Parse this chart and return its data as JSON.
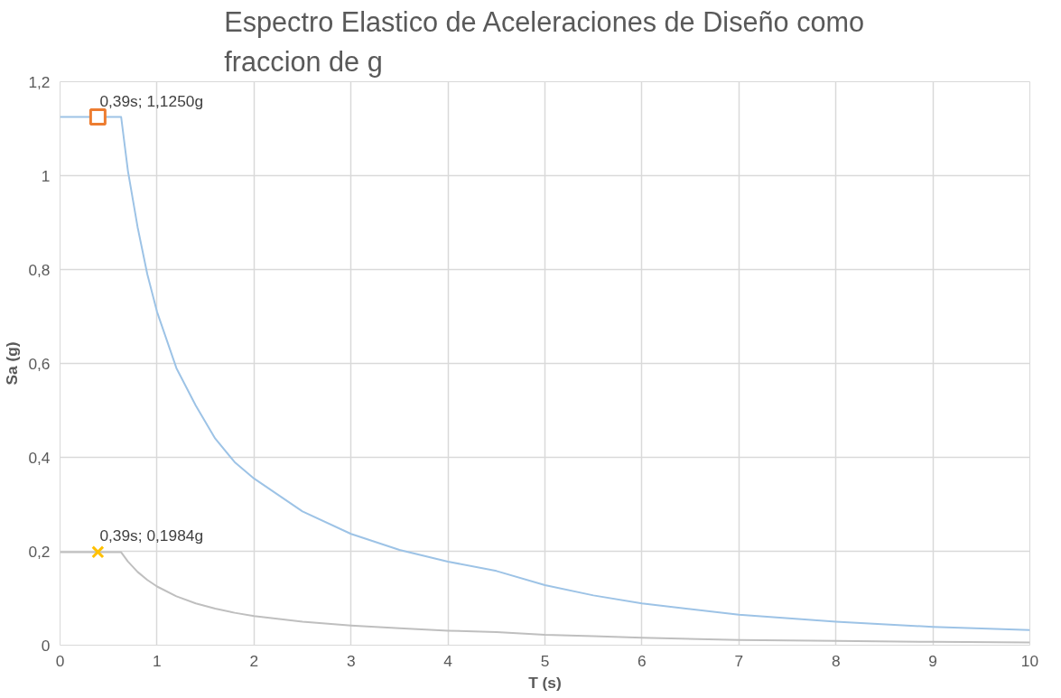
{
  "chart_data": {
    "type": "line",
    "title": "Espectro Elastico de Aceleraciones de Diseño como\nfraccion de g",
    "xlabel": "T (s)",
    "ylabel": "Sa (g)",
    "xlim": [
      0,
      10
    ],
    "xticks": [
      0,
      1,
      2,
      3,
      4,
      5,
      6,
      7,
      8,
      9,
      10
    ],
    "ylim": [
      0,
      1.2
    ],
    "yticks": [
      0,
      {
        "value": 0.2,
        "label": "0,2"
      },
      {
        "value": 0.4,
        "label": "0,4"
      },
      {
        "value": 0.6,
        "label": "0,6"
      },
      {
        "value": 0.8,
        "label": "0,8"
      },
      1,
      {
        "value": 1.2,
        "label": "1,2"
      }
    ],
    "grid": true,
    "marker": "none",
    "line_style": "solid",
    "series": [
      {
        "color": "#9dc3e6",
        "x": [
          0,
          0.63,
          0.7,
          0.8,
          0.9,
          1,
          1.2,
          1.4,
          1.6,
          1.8,
          2,
          2.5,
          3,
          3.5,
          4,
          4.5,
          5,
          5.5,
          6,
          7,
          8,
          9,
          10
        ],
        "values": [
          1.125,
          1.125,
          1.01,
          0.89,
          0.79,
          0.71,
          0.59,
          0.51,
          0.44,
          0.39,
          0.355,
          0.285,
          0.237,
          0.203,
          0.178,
          0.158,
          0.128,
          0.106,
          0.089,
          0.065,
          0.05,
          0.039,
          0.032
        ]
      },
      {
        "color": "#bfbfbf",
        "x": [
          0,
          0.63,
          0.7,
          0.8,
          0.9,
          1,
          1.2,
          1.4,
          1.6,
          1.8,
          2,
          2.5,
          3,
          3.5,
          4,
          4.5,
          5,
          5.5,
          6,
          7,
          8,
          9,
          10
        ],
        "values": [
          0.198,
          0.198,
          0.178,
          0.156,
          0.139,
          0.125,
          0.104,
          0.089,
          0.078,
          0.069,
          0.062,
          0.05,
          0.042,
          0.036,
          0.031,
          0.028,
          0.022,
          0.019,
          0.016,
          0.011,
          0.009,
          0.007,
          0.006
        ]
      },
      {
        "type": "scatter",
        "marker": "square",
        "color": "#ed7d31",
        "x": [
          0.39
        ],
        "values": [
          1.125
        ],
        "value_labels": [
          "0,39s; 1,1250g"
        ]
      },
      {
        "type": "scatter",
        "marker": "cross",
        "color": "#ffc000",
        "x": [
          0.39
        ],
        "values": [
          0.1984
        ],
        "value_labels": [
          "0,39s; 0,1984g"
        ]
      }
    ]
  }
}
